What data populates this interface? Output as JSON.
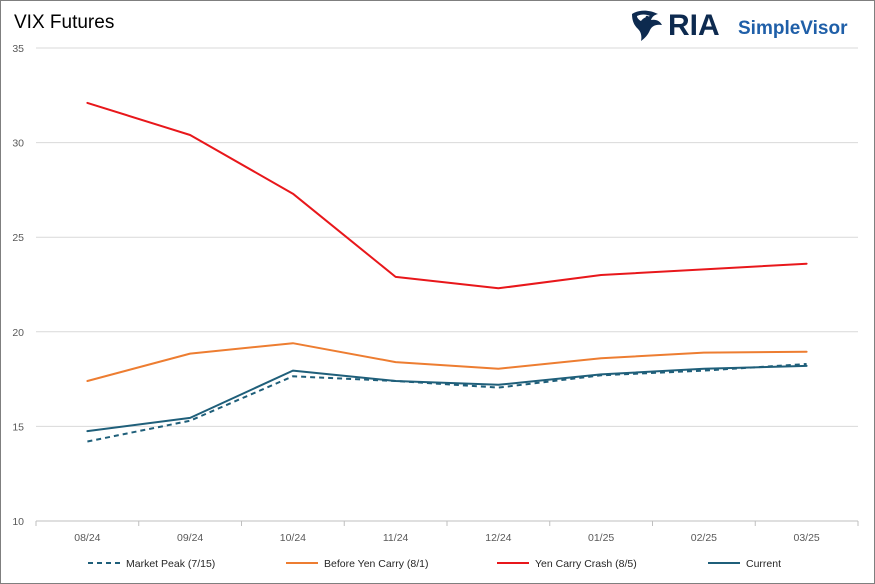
{
  "title": "VIX Futures",
  "brand": {
    "name_primary": "RIA",
    "name_secondary": "SimpleVisor",
    "primary_color": "#0d2a4f",
    "secondary_color": "#1f5fa8"
  },
  "chart_data": {
    "type": "line",
    "title": "VIX Futures",
    "categories": [
      "08/24",
      "09/24",
      "10/24",
      "11/24",
      "12/24",
      "01/25",
      "02/25",
      "03/25"
    ],
    "ylim": [
      10,
      35
    ],
    "yticks": [
      10,
      15,
      20,
      25,
      30,
      35
    ],
    "grid": true,
    "legend_position": "bottom",
    "series": [
      {
        "name": "Market Peak (7/15)",
        "color": "#1f5f7a",
        "dash": true,
        "values": [
          14.2,
          15.3,
          17.65,
          17.4,
          17.05,
          17.7,
          17.95,
          18.3
        ]
      },
      {
        "name": "Before Yen Carry (8/1)",
        "color": "#ed7d31",
        "dash": false,
        "values": [
          17.4,
          18.85,
          19.4,
          18.4,
          18.05,
          18.6,
          18.9,
          18.95
        ]
      },
      {
        "name": "Yen Carry Crash (8/5)",
        "color": "#e8171b",
        "dash": false,
        "values": [
          32.1,
          30.4,
          27.3,
          22.9,
          22.3,
          23.0,
          23.3,
          23.6
        ]
      },
      {
        "name": "Current",
        "color": "#1f5f7a",
        "dash": false,
        "values": [
          14.75,
          15.45,
          17.95,
          17.4,
          17.2,
          17.75,
          18.05,
          18.2
        ]
      }
    ]
  }
}
